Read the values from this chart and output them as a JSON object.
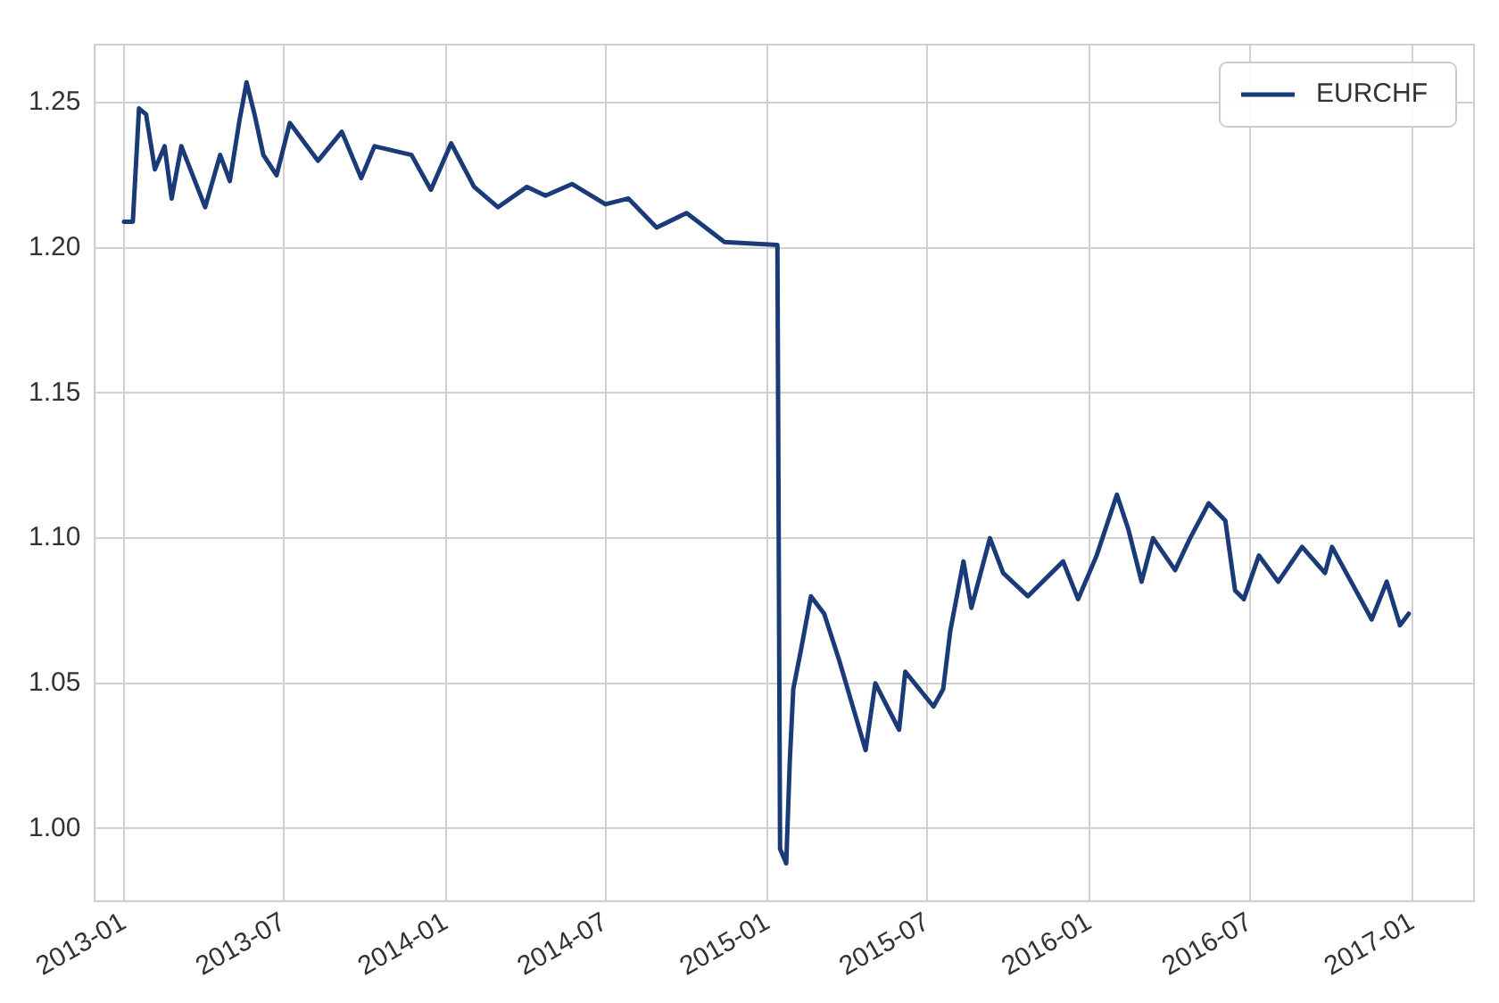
{
  "chart_data": {
    "type": "line",
    "x": [
      "2013-01-01",
      "2013-01-11",
      "2013-01-18",
      "2013-01-26",
      "2013-02-05",
      "2013-02-16",
      "2013-02-24",
      "2013-03-07",
      "2013-04-03",
      "2013-04-20",
      "2013-05-01",
      "2013-05-12",
      "2013-05-20",
      "2013-05-29",
      "2013-06-08",
      "2013-06-23",
      "2013-07-08",
      "2013-08-09",
      "2013-09-05",
      "2013-09-27",
      "2013-10-12",
      "2013-11-23",
      "2013-12-15",
      "2014-01-07",
      "2014-02-02",
      "2014-03-01",
      "2014-04-03",
      "2014-04-24",
      "2014-05-24",
      "2014-07-01",
      "2014-07-27",
      "2014-08-28",
      "2014-10-01",
      "2014-11-13",
      "2015-01-12",
      "2015-01-15",
      "2015-01-22",
      "2015-01-26",
      "2015-01-30",
      "2015-02-08",
      "2015-02-19",
      "2015-03-06",
      "2015-03-23",
      "2015-04-22",
      "2015-05-03",
      "2015-05-30",
      "2015-06-06",
      "2015-07-08",
      "2015-07-19",
      "2015-07-27",
      "2015-08-11",
      "2015-08-20",
      "2015-09-10",
      "2015-09-25",
      "2015-10-23",
      "2015-12-02",
      "2015-12-19",
      "2016-01-09",
      "2016-02-01",
      "2016-02-14",
      "2016-02-29",
      "2016-03-13",
      "2016-04-07",
      "2016-04-24",
      "2016-05-15",
      "2016-06-03",
      "2016-06-14",
      "2016-06-24",
      "2016-07-11",
      "2016-08-02",
      "2016-08-29",
      "2016-09-24",
      "2016-10-02",
      "2016-11-16",
      "2016-12-03",
      "2016-12-18",
      "2016-12-28"
    ],
    "series": [
      {
        "name": "EURCHF",
        "color": "#1a3a78",
        "values": [
          1.209,
          1.209,
          1.248,
          1.246,
          1.227,
          1.235,
          1.217,
          1.235,
          1.214,
          1.232,
          1.223,
          1.244,
          1.257,
          1.246,
          1.232,
          1.225,
          1.243,
          1.23,
          1.24,
          1.224,
          1.235,
          1.232,
          1.22,
          1.236,
          1.221,
          1.214,
          1.221,
          1.218,
          1.222,
          1.215,
          1.217,
          1.207,
          1.212,
          1.202,
          1.201,
          0.993,
          0.988,
          1.023,
          1.048,
          1.062,
          1.08,
          1.074,
          1.058,
          1.027,
          1.05,
          1.034,
          1.054,
          1.042,
          1.048,
          1.068,
          1.092,
          1.076,
          1.1,
          1.088,
          1.08,
          1.092,
          1.079,
          1.094,
          1.115,
          1.103,
          1.085,
          1.1,
          1.089,
          1.1,
          1.112,
          1.106,
          1.082,
          1.079,
          1.094,
          1.085,
          1.097,
          1.088,
          1.097,
          1.072,
          1.085,
          1.07,
          1.074
        ]
      }
    ],
    "xlim": [
      "2012-11-29",
      "2017-03-12"
    ],
    "xticks": [
      "2013-01",
      "2013-07",
      "2014-01",
      "2014-07",
      "2015-01",
      "2015-07",
      "2016-01",
      "2016-07",
      "2017-01"
    ],
    "ylim": [
      0.975,
      1.27
    ],
    "yticks": [
      {
        "value": 1.0,
        "label": "1.00"
      },
      1.05,
      {
        "value": 1.1,
        "label": "1.10"
      },
      1.15,
      {
        "value": 1.2,
        "label": "1.20"
      },
      1.25
    ],
    "grid": true,
    "legend": "top right",
    "marker": "none",
    "line_style": "solid"
  }
}
